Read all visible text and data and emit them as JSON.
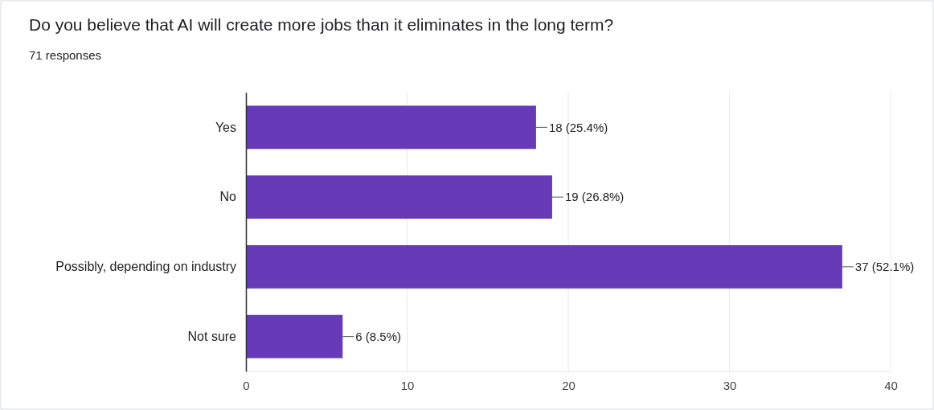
{
  "chart_data": {
    "type": "bar",
    "orientation": "horizontal",
    "title": "Do you believe that AI will create more jobs than it eliminates in the long term?",
    "subtitle": "71 responses",
    "categories": [
      "Yes",
      "No",
      "Possibly, depending on industry",
      "Not sure"
    ],
    "values": [
      18,
      19,
      37,
      6
    ],
    "value_labels": [
      "18 (25.4%)",
      "19 (26.8%)",
      "37 (52.1%)",
      "6 (8.5%)"
    ],
    "color": "#673ab7",
    "xlim": [
      0,
      40
    ],
    "xticks": [
      0,
      10,
      20,
      30,
      40
    ],
    "grid": "x"
  }
}
